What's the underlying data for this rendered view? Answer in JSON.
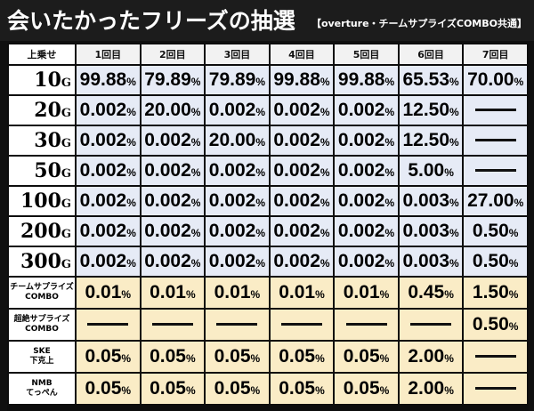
{
  "header": {
    "title": "会いたかったフリーズの抽選",
    "subtitle": "【overture・チームサプライズCOMBO共通】"
  },
  "table": {
    "corner_label": "上乗せ",
    "columns": [
      "1回目",
      "2回目",
      "3回目",
      "4回目",
      "5回目",
      "6回目",
      "7回目"
    ],
    "rows": [
      {
        "label": "10",
        "unit": "G",
        "style": "blue",
        "values": [
          "99.88",
          "79.89",
          "79.89",
          "99.88",
          "99.88",
          "65.53",
          "70.00"
        ]
      },
      {
        "label": "20",
        "unit": "G",
        "style": "blue",
        "values": [
          "0.002",
          "20.00",
          "0.002",
          "0.002",
          "0.002",
          "12.50",
          null
        ]
      },
      {
        "label": "30",
        "unit": "G",
        "style": "blue",
        "values": [
          "0.002",
          "0.002",
          "20.00",
          "0.002",
          "0.002",
          "12.50",
          null
        ]
      },
      {
        "label": "50",
        "unit": "G",
        "style": "blue",
        "values": [
          "0.002",
          "0.002",
          "0.002",
          "0.002",
          "0.002",
          "5.00",
          null
        ]
      },
      {
        "label": "100",
        "unit": "G",
        "style": "blue",
        "values": [
          "0.002",
          "0.002",
          "0.002",
          "0.002",
          "0.002",
          "0.003",
          "27.00"
        ]
      },
      {
        "label": "200",
        "unit": "G",
        "style": "blue",
        "values": [
          "0.002",
          "0.002",
          "0.002",
          "0.002",
          "0.002",
          "0.003",
          "0.50"
        ]
      },
      {
        "label": "300",
        "unit": "G",
        "style": "blue",
        "values": [
          "0.002",
          "0.002",
          "0.002",
          "0.002",
          "0.002",
          "0.003",
          "0.50"
        ]
      },
      {
        "label_lines": [
          "チームサプライズ",
          "COMBO"
        ],
        "style": "gold",
        "values": [
          "0.01",
          "0.01",
          "0.01",
          "0.01",
          "0.01",
          "0.45",
          "1.50"
        ]
      },
      {
        "label_lines": [
          "超絶サプライズ",
          "COMBO"
        ],
        "style": "gold",
        "values": [
          null,
          null,
          null,
          null,
          null,
          null,
          "0.50"
        ]
      },
      {
        "label_lines": [
          "SKE",
          "下克上"
        ],
        "style": "gold",
        "values": [
          "0.05",
          "0.05",
          "0.05",
          "0.05",
          "0.05",
          "2.00",
          null
        ]
      },
      {
        "label_lines": [
          "NMB",
          "てっぺん"
        ],
        "style": "gold",
        "values": [
          "0.05",
          "0.05",
          "0.05",
          "0.05",
          "0.05",
          "2.00",
          null
        ]
      }
    ],
    "percent_sign": "%",
    "colors": {
      "blue_cell": "#e6ebf6",
      "gold_cell": "#faecc6",
      "header_cell": "#f2f2f2",
      "grid": "#0d0d0d"
    }
  }
}
